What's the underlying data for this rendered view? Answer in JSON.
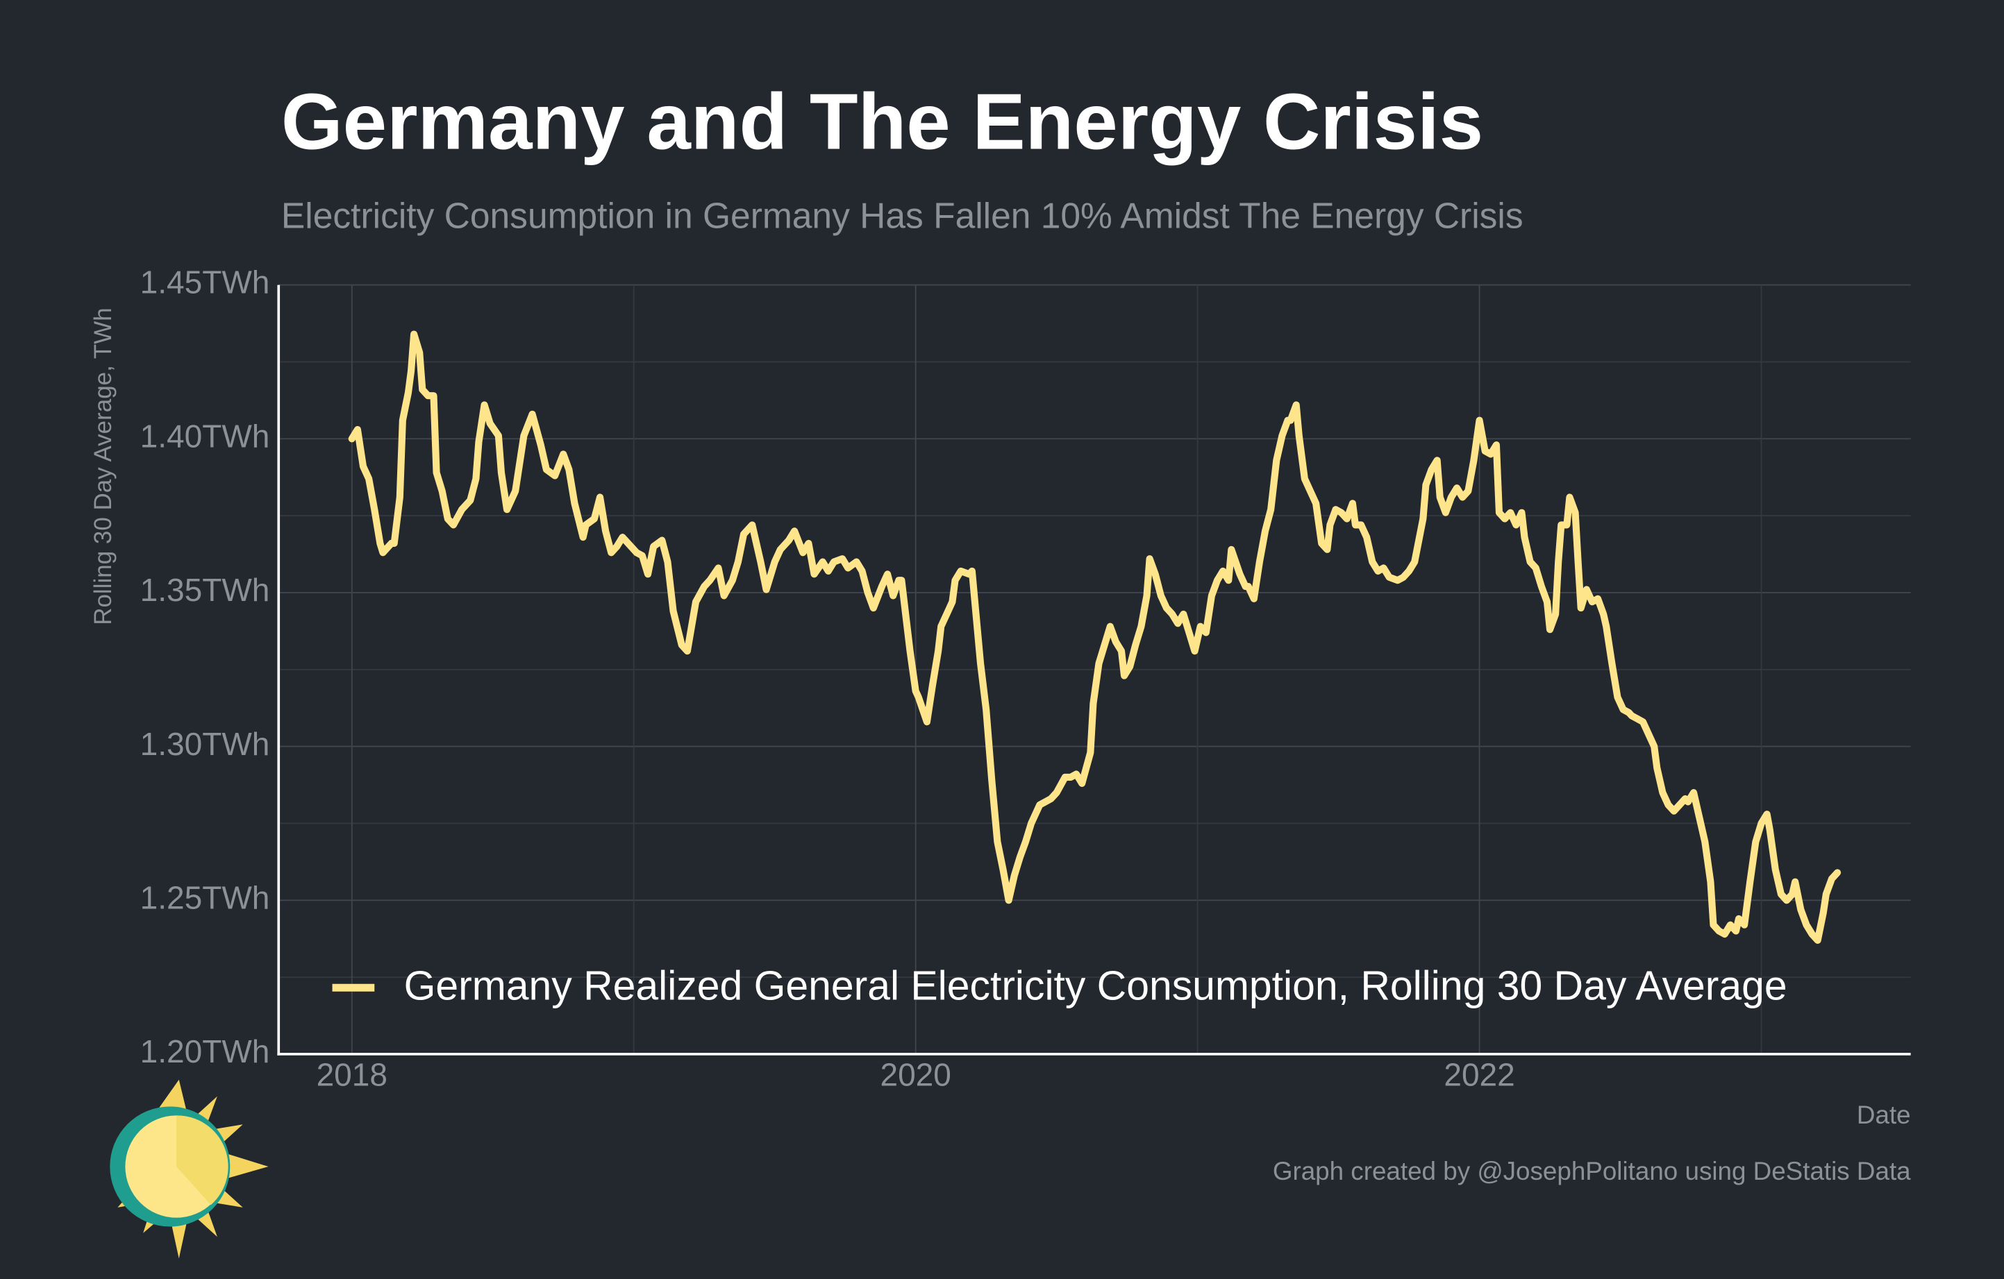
{
  "chart_data": {
    "type": "line",
    "title": "Germany and The Energy Crisis",
    "subtitle": "Electricity Consumption in Germany Has Fallen 10% Amidst The Energy Crisis",
    "y_label": "Rolling 30 Day Average, TWh",
    "x_label": "Date",
    "caption": "Graph created by @JosephPolitano using DeStatis Data",
    "xlim": [
      2017.74,
      2023.53
    ],
    "xticks": [
      2018,
      2020,
      2022
    ],
    "ylim": [
      1.2,
      1.45
    ],
    "yticks": [
      {
        "value": 1.2,
        "label": "1.20TWh"
      },
      {
        "value": 1.25,
        "label": "1.25TWh"
      },
      {
        "value": 1.3,
        "label": "1.30TWh"
      },
      {
        "value": 1.35,
        "label": "1.35TWh"
      },
      {
        "value": 1.4,
        "label": "1.40TWh"
      },
      {
        "value": 1.45,
        "label": "1.45TWh"
      }
    ],
    "grid": true,
    "legend": "bottom",
    "series": [
      {
        "name": "Germany Realized General Electricity Consumption, Rolling 30 Day Average",
        "color": "#fee48b",
        "x": [
          2018.0,
          2018.02,
          2018.04,
          2018.06,
          2018.08,
          2018.1,
          2018.11,
          2018.14,
          2018.15,
          2018.17,
          2018.18,
          2018.2,
          2018.21,
          2018.22,
          2018.24,
          2018.25,
          2018.27,
          2018.29,
          2018.3,
          2018.32,
          2018.34,
          2018.36,
          2018.39,
          2018.42,
          2018.44,
          2018.45,
          2018.47,
          2018.49,
          2018.52,
          2018.53,
          2018.55,
          2018.58,
          2018.61,
          2018.64,
          2018.67,
          2018.69,
          2018.72,
          2018.75,
          2018.77,
          2018.79,
          2018.82,
          2018.83,
          2018.86,
          2018.88,
          2018.9,
          2018.92,
          2018.94,
          2018.96,
          2018.98,
          2019.01,
          2019.03,
          2019.05,
          2019.07,
          2019.1,
          2019.12,
          2019.14,
          2019.17,
          2019.19,
          2019.22,
          2019.25,
          2019.27,
          2019.3,
          2019.32,
          2019.35,
          2019.37,
          2019.39,
          2019.42,
          2019.45,
          2019.47,
          2019.5,
          2019.52,
          2019.55,
          2019.57,
          2019.6,
          2019.62,
          2019.64,
          2019.67,
          2019.69,
          2019.71,
          2019.74,
          2019.76,
          2019.79,
          2019.81,
          2019.83,
          2019.85,
          2019.88,
          2019.9,
          2019.92,
          2019.94,
          2019.95,
          2019.98,
          2020.0,
          2020.01,
          2020.04,
          2020.06,
          2020.08,
          2020.09,
          2020.11,
          2020.13,
          2020.14,
          2020.16,
          2020.19,
          2020.2,
          2020.23,
          2020.25,
          2020.27,
          2020.29,
          2020.31,
          2020.33,
          2020.35,
          2020.37,
          2020.39,
          2020.41,
          2020.44,
          2020.46,
          2020.48,
          2020.5,
          2020.53,
          2020.55,
          2020.57,
          2020.59,
          2020.62,
          2020.63,
          2020.65,
          2020.67,
          2020.69,
          2020.71,
          2020.73,
          2020.74,
          2020.76,
          2020.78,
          2020.8,
          2020.82,
          2020.83,
          2020.85,
          2020.87,
          2020.89,
          2020.91,
          2020.93,
          2020.95,
          2020.97,
          2020.99,
          2021.01,
          2021.03,
          2021.05,
          2021.07,
          2021.09,
          2021.11,
          2021.12,
          2021.15,
          2021.17,
          2021.18,
          2021.2,
          2021.22,
          2021.24,
          2021.26,
          2021.28,
          2021.3,
          2021.32,
          2021.33,
          2021.35,
          2021.36,
          2021.38,
          2021.4,
          2021.42,
          2021.44,
          2021.46,
          2021.47,
          2021.49,
          2021.51,
          2021.53,
          2021.55,
          2021.56,
          2021.58,
          2021.6,
          2021.62,
          2021.64,
          2021.66,
          2021.68,
          2021.71,
          2021.73,
          2021.75,
          2021.77,
          2021.8,
          2021.81,
          2021.83,
          2021.85,
          2021.86,
          2021.88,
          2021.9,
          2021.92,
          2021.94,
          2021.96,
          2021.98,
          2022.0,
          2022.02,
          2022.04,
          2022.06,
          2022.07,
          2022.09,
          2022.11,
          2022.13,
          2022.15,
          2022.16,
          2022.18,
          2022.2,
          2022.22,
          2022.24,
          2022.25,
          2022.27,
          2022.28,
          2022.29,
          2022.31,
          2022.32,
          2022.34,
          2022.35,
          2022.36,
          2022.38,
          2022.4,
          2022.42,
          2022.44,
          2022.45,
          2022.47,
          2022.49,
          2022.51,
          2022.53,
          2022.54,
          2022.56,
          2022.58,
          2022.6,
          2022.62,
          2022.63,
          2022.65,
          2022.67,
          2022.69,
          2022.71,
          2022.73,
          2022.74,
          2022.76,
          2022.78,
          2022.8,
          2022.82,
          2022.83,
          2022.85,
          2022.87,
          2022.89,
          2022.91,
          2022.92,
          2022.94,
          2022.96,
          2022.98,
          2023.0,
          2023.02,
          2023.03,
          2023.05,
          2023.07,
          2023.09,
          2023.11,
          2023.12,
          2023.14,
          2023.16,
          2023.18,
          2023.2,
          2023.22,
          2023.23,
          2023.25,
          2023.27
        ],
        "values": [
          1.4,
          1.403,
          1.391,
          1.387,
          1.377,
          1.366,
          1.363,
          1.366,
          1.366,
          1.381,
          1.406,
          1.415,
          1.422,
          1.434,
          1.428,
          1.416,
          1.414,
          1.414,
          1.389,
          1.383,
          1.374,
          1.372,
          1.377,
          1.38,
          1.387,
          1.399,
          1.411,
          1.405,
          1.401,
          1.389,
          1.377,
          1.383,
          1.401,
          1.408,
          1.398,
          1.39,
          1.388,
          1.395,
          1.39,
          1.379,
          1.368,
          1.372,
          1.374,
          1.381,
          1.37,
          1.363,
          1.365,
          1.368,
          1.366,
          1.363,
          1.362,
          1.356,
          1.365,
          1.367,
          1.36,
          1.344,
          1.333,
          1.331,
          1.347,
          1.352,
          1.354,
          1.358,
          1.349,
          1.354,
          1.36,
          1.369,
          1.372,
          1.36,
          1.351,
          1.36,
          1.364,
          1.367,
          1.37,
          1.363,
          1.366,
          1.356,
          1.36,
          1.357,
          1.36,
          1.361,
          1.358,
          1.36,
          1.357,
          1.35,
          1.345,
          1.352,
          1.356,
          1.349,
          1.354,
          1.354,
          1.331,
          1.318,
          1.316,
          1.308,
          1.32,
          1.331,
          1.339,
          1.343,
          1.347,
          1.354,
          1.357,
          1.356,
          1.357,
          1.327,
          1.312,
          1.289,
          1.269,
          1.26,
          1.25,
          1.258,
          1.264,
          1.269,
          1.275,
          1.281,
          1.282,
          1.283,
          1.285,
          1.29,
          1.29,
          1.291,
          1.288,
          1.298,
          1.314,
          1.327,
          1.333,
          1.339,
          1.334,
          1.331,
          1.323,
          1.326,
          1.333,
          1.339,
          1.349,
          1.361,
          1.356,
          1.349,
          1.345,
          1.343,
          1.34,
          1.343,
          1.337,
          1.331,
          1.339,
          1.337,
          1.349,
          1.354,
          1.357,
          1.354,
          1.364,
          1.356,
          1.352,
          1.352,
          1.348,
          1.36,
          1.37,
          1.377,
          1.393,
          1.401,
          1.406,
          1.406,
          1.411,
          1.401,
          1.387,
          1.383,
          1.379,
          1.366,
          1.364,
          1.372,
          1.377,
          1.376,
          1.374,
          1.379,
          1.372,
          1.372,
          1.368,
          1.36,
          1.357,
          1.358,
          1.355,
          1.354,
          1.355,
          1.357,
          1.36,
          1.374,
          1.385,
          1.39,
          1.393,
          1.381,
          1.376,
          1.381,
          1.384,
          1.381,
          1.383,
          1.393,
          1.406,
          1.396,
          1.395,
          1.398,
          1.376,
          1.374,
          1.376,
          1.372,
          1.376,
          1.368,
          1.36,
          1.358,
          1.352,
          1.347,
          1.338,
          1.343,
          1.36,
          1.372,
          1.372,
          1.381,
          1.376,
          1.36,
          1.345,
          1.351,
          1.347,
          1.348,
          1.343,
          1.339,
          1.327,
          1.316,
          1.312,
          1.311,
          1.31,
          1.309,
          1.308,
          1.304,
          1.3,
          1.293,
          1.285,
          1.281,
          1.279,
          1.281,
          1.283,
          1.282,
          1.285,
          1.277,
          1.269,
          1.256,
          1.242,
          1.24,
          1.239,
          1.242,
          1.24,
          1.244,
          1.242,
          1.256,
          1.269,
          1.275,
          1.278,
          1.273,
          1.26,
          1.252,
          1.25,
          1.252,
          1.256,
          1.247,
          1.242,
          1.239,
          1.237,
          1.246,
          1.252,
          1.257,
          1.259
        ]
      }
    ]
  }
}
